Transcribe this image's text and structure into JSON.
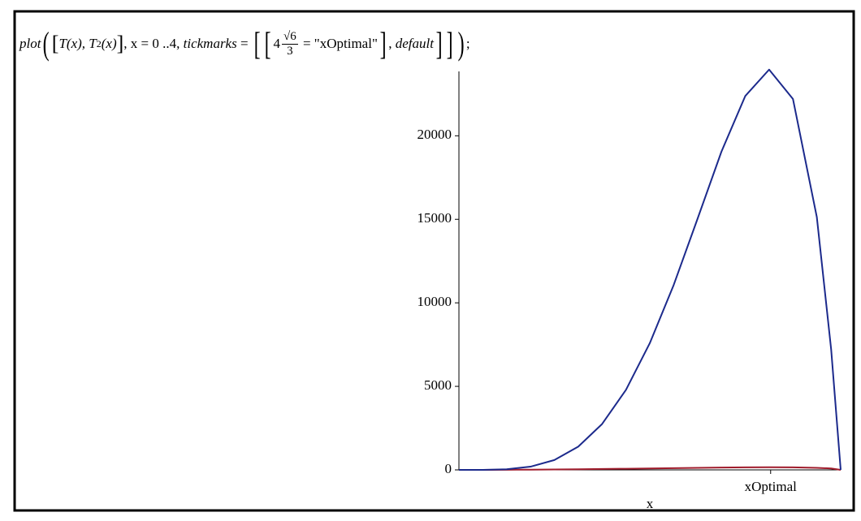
{
  "command": {
    "tokens": [
      "plot",
      "(",
      "[",
      "T(x), T",
      "2",
      "(x)",
      "]",
      ", x = 0 ..4, ",
      "tickmarks",
      " = ",
      "[",
      "[",
      "4",
      "√6",
      "3",
      " = \"xOptimal\"",
      "]",
      ", ",
      "default",
      "]",
      "]",
      ")",
      ";"
    ]
  },
  "chart_data": {
    "type": "line",
    "x": [
      0,
      0.25,
      0.5,
      0.75,
      1,
      1.25,
      1.5,
      1.75,
      2,
      2.25,
      2.5,
      2.75,
      3,
      3.25,
      3.5,
      3.75,
      3.9,
      4
    ],
    "series": [
      {
        "name": "T(x)",
        "color": "#a01c2c",
        "values": [
          0,
          1.57,
          6.23,
          13.9,
          24.3,
          37.3,
          52.4,
          69.2,
          87.1,
          105.2,
          122.6,
          138.0,
          149.6,
          154.8,
          149.0,
          123.0,
          84.9,
          0
        ]
      },
      {
        "name": "T^2(x)",
        "color": "#1c2a8c",
        "values": [
          0,
          2.5,
          38.8,
          193,
          590,
          1391,
          2746,
          4789,
          7586,
          11067,
          15031,
          19044,
          22380,
          23963,
          22201,
          15129,
          7216,
          0
        ]
      }
    ],
    "xlim": [
      0,
      4
    ],
    "xticks": [
      {
        "value": 3.266,
        "label": "xOptimal"
      }
    ],
    "ylim": [
      0,
      24000
    ],
    "yticks": [
      0,
      5000,
      10000,
      15000,
      20000
    ],
    "x_label": "x"
  }
}
